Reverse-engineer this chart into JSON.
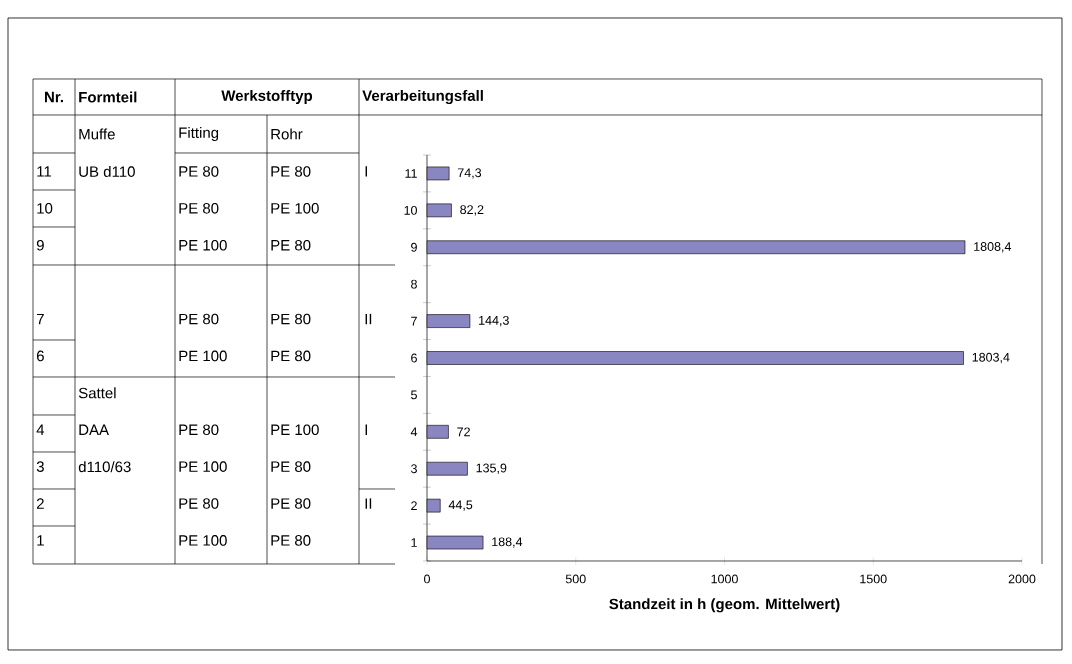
{
  "chart_data": [
    {
      "type": "other",
      "annotations": [
        "Nr.",
        "Formteil",
        "Werkstofftyp",
        "Verarbeitungsfall",
        "Muffe",
        "Fitting",
        "Rohr",
        "11",
        "UB d110",
        "PE 80",
        "PE 80",
        "I",
        "10",
        "PE 80",
        "PE 100",
        "9",
        "PE 100",
        "PE 80",
        "7",
        "PE 80",
        "PE 80",
        "II",
        "6",
        "PE 100",
        "PE 80",
        "Sattel",
        "4",
        "DAA",
        "PE 80",
        "PE 100",
        "I",
        "3",
        "d110/63",
        "PE 100",
        "PE 80",
        "2",
        "PE 80",
        "PE 80",
        "II",
        "1",
        "PE 100",
        "PE 80"
      ]
    },
    {
      "type": "bar",
      "orientation": "horizontal",
      "categories": [
        "11",
        "10",
        "9",
        "8",
        "7",
        "6",
        "5",
        "4",
        "3",
        "2",
        "1"
      ],
      "values": [
        74.3,
        82.2,
        1808.4,
        null,
        144.3,
        1803.4,
        null,
        72,
        135.9,
        44.5,
        188.4
      ],
      "value_labels": [
        "74,3",
        "82,2",
        "1808,4",
        null,
        "144,3",
        "1803,4",
        null,
        "72",
        "135,9",
        "44,5",
        "188,4"
      ],
      "color": "#8a86c2",
      "xlim": [
        0,
        2000
      ],
      "xticks": [
        0,
        500,
        1000,
        1500,
        2000
      ],
      "xlabel": "Standzeit in h  (geom. Mittelwert)"
    }
  ]
}
